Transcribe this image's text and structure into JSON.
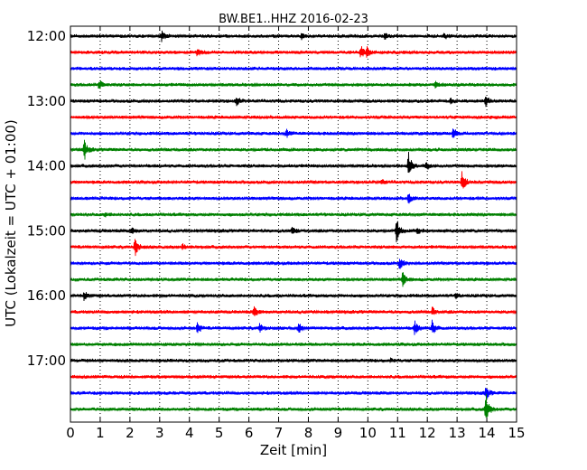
{
  "chart_data": {
    "type": "line",
    "title": "BW.BE1..HHZ 2016-02-23",
    "xlabel": "Zeit  [min]",
    "ylabel": "UTC (Lokalzeit = UTC + 01:00)",
    "xlim": [
      0,
      15
    ],
    "x_ticks": [
      0,
      1,
      2,
      3,
      4,
      5,
      6,
      7,
      8,
      9,
      10,
      11,
      12,
      13,
      14,
      15
    ],
    "y_tick_labels": [
      "12:00",
      "13:00",
      "14:00",
      "15:00",
      "16:00",
      "17:00"
    ],
    "grid": "vertical dotted",
    "colors": [
      "#000000",
      "#ff0000",
      "#0000ff",
      "#008000"
    ],
    "trace_offset_minutes": 15,
    "traces": [
      {
        "start": "12:00",
        "color": "#000000",
        "events": [
          {
            "t": 3.1,
            "amp": 0.35
          },
          {
            "t": 7.8,
            "amp": 0.2
          },
          {
            "t": 10.6,
            "amp": 0.2
          },
          {
            "t": 12.6,
            "amp": 0.2
          }
        ]
      },
      {
        "start": "12:15",
        "color": "#ff0000",
        "events": [
          {
            "t": 4.3,
            "amp": 0.25
          },
          {
            "t": 9.8,
            "amp": 0.45
          },
          {
            "t": 10.0,
            "amp": 0.3
          }
        ]
      },
      {
        "start": "12:30",
        "color": "#0000ff",
        "events": []
      },
      {
        "start": "12:45",
        "color": "#008000",
        "events": [
          {
            "t": 1.0,
            "amp": 0.4
          },
          {
            "t": 12.3,
            "amp": 0.2
          }
        ]
      },
      {
        "start": "13:00",
        "color": "#000000",
        "events": [
          {
            "t": 5.6,
            "amp": 0.35
          },
          {
            "t": 12.8,
            "amp": 0.2
          },
          {
            "t": 14.0,
            "amp": 0.35
          }
        ]
      },
      {
        "start": "13:15",
        "color": "#ff0000",
        "events": []
      },
      {
        "start": "13:30",
        "color": "#0000ff",
        "events": [
          {
            "t": 7.3,
            "amp": 0.3
          },
          {
            "t": 12.9,
            "amp": 0.4
          }
        ]
      },
      {
        "start": "13:45",
        "color": "#008000",
        "events": [
          {
            "t": 0.5,
            "amp": 0.7
          }
        ]
      },
      {
        "start": "14:00",
        "color": "#000000",
        "events": [
          {
            "t": 11.4,
            "amp": 0.95
          },
          {
            "t": 12.0,
            "amp": 0.25
          }
        ]
      },
      {
        "start": "14:15",
        "color": "#ff0000",
        "events": [
          {
            "t": 13.2,
            "amp": 0.75
          },
          {
            "t": 10.5,
            "amp": 0.15
          }
        ]
      },
      {
        "start": "14:30",
        "color": "#0000ff",
        "events": [
          {
            "t": 11.4,
            "amp": 0.35
          }
        ]
      },
      {
        "start": "14:45",
        "color": "#008000",
        "events": [
          {
            "t": 1.2,
            "amp": 0.15
          }
        ]
      },
      {
        "start": "15:00",
        "color": "#000000",
        "events": [
          {
            "t": 11.0,
            "amp": 0.9
          },
          {
            "t": 7.5,
            "amp": 0.3
          },
          {
            "t": 2.1,
            "amp": 0.2
          },
          {
            "t": 11.7,
            "amp": 0.2
          }
        ]
      },
      {
        "start": "15:15",
        "color": "#ff0000",
        "events": [
          {
            "t": 2.2,
            "amp": 0.65
          },
          {
            "t": 3.8,
            "amp": 0.2
          }
        ]
      },
      {
        "start": "15:30",
        "color": "#0000ff",
        "events": [
          {
            "t": 11.1,
            "amp": 0.4
          }
        ]
      },
      {
        "start": "15:45",
        "color": "#008000",
        "events": [
          {
            "t": 11.2,
            "amp": 0.55
          }
        ]
      },
      {
        "start": "16:00",
        "color": "#000000",
        "events": [
          {
            "t": 0.5,
            "amp": 0.35
          },
          {
            "t": 13.0,
            "amp": 0.15
          }
        ]
      },
      {
        "start": "16:15",
        "color": "#ff0000",
        "events": [
          {
            "t": 6.2,
            "amp": 0.4
          },
          {
            "t": 12.2,
            "amp": 0.35
          }
        ]
      },
      {
        "start": "16:30",
        "color": "#0000ff",
        "events": [
          {
            "t": 4.3,
            "amp": 0.4
          },
          {
            "t": 6.4,
            "amp": 0.3
          },
          {
            "t": 7.7,
            "amp": 0.4
          },
          {
            "t": 11.6,
            "amp": 0.6
          },
          {
            "t": 12.2,
            "amp": 0.5
          }
        ]
      },
      {
        "start": "16:45",
        "color": "#008000",
        "events": []
      },
      {
        "start": "17:00",
        "color": "#000000",
        "events": [
          {
            "t": 10.8,
            "amp": 0.15
          }
        ]
      },
      {
        "start": "17:15",
        "color": "#ff0000",
        "events": []
      },
      {
        "start": "17:30",
        "color": "#0000ff",
        "events": [
          {
            "t": 14.0,
            "amp": 0.45
          }
        ]
      },
      {
        "start": "17:45",
        "color": "#008000",
        "events": [
          {
            "t": 14.0,
            "amp": 1.2
          }
        ]
      }
    ]
  }
}
